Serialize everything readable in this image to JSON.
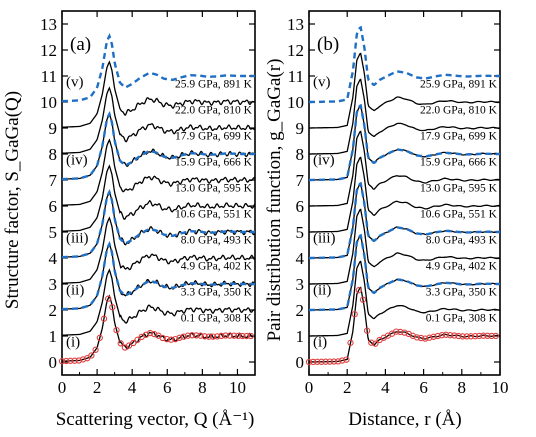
{
  "figure": {
    "panels": [
      {
        "label": "(a)",
        "xlabel": "Scattering vector, Q (Å⁻¹)",
        "ylabel": "Structure factor, S_GaGa(Q)"
      },
      {
        "label": "(b)",
        "xlabel": "Distance, r (Å)",
        "ylabel": "Pair distribution function, g_GaGa(r)"
      }
    ],
    "conditions": [
      "0.1 GPa, 308 K",
      "3.3 GPa, 350 K",
      "4.9 GPa, 402 K",
      "8.0 GPa, 493 K",
      "10.6 GPa, 551 K",
      "13.0 GPa, 595 K",
      "15.9 GPa, 666 K",
      "17.9 GPa, 699 K",
      "22.0 GPa, 810 K",
      "25.9 GPa, 891 K"
    ],
    "offsets": [
      0,
      1,
      2,
      3,
      4,
      5,
      6,
      7,
      8,
      9
    ],
    "reference_labels": [
      "(i)",
      "(ii)",
      "(iii)",
      "(iv)",
      "(v)"
    ],
    "reference_offsets": [
      0,
      2,
      4,
      7,
      10
    ],
    "colors": {
      "experiment": "#000000",
      "reference_dashed": "#1f6fc5",
      "reference_circles": "#e03c3c"
    }
  },
  "chart_data": [
    {
      "type": "line",
      "xlabel": "Scattering vector, Q (Å⁻¹)",
      "ylabel": "Structure factor, S_GaGa(Q)",
      "xlim": [
        0,
        11
      ],
      "ylim": [
        -0.5,
        13.5
      ],
      "xticks": [
        0,
        2,
        4,
        6,
        8,
        10
      ],
      "yticks": [
        0,
        1,
        2,
        3,
        4,
        5,
        6,
        7,
        8,
        9,
        10,
        11,
        12,
        13
      ],
      "offset_step": 1,
      "profile": {
        "x": [
          0.0,
          1.0,
          1.6,
          2.0,
          2.3,
          2.55,
          2.7,
          2.85,
          3.0,
          3.3,
          3.6,
          4.0,
          4.5,
          5.0,
          5.4,
          5.8,
          6.3,
          6.8,
          7.3,
          7.8,
          8.3,
          8.8,
          9.3,
          9.8,
          10.3,
          11.0
        ],
        "y": [
          0.03,
          0.06,
          0.18,
          0.55,
          1.3,
          2.3,
          2.55,
          2.2,
          1.5,
          0.75,
          0.55,
          0.7,
          0.95,
          1.12,
          1.05,
          0.9,
          0.85,
          0.95,
          1.03,
          1.02,
          0.97,
          0.98,
          1.02,
          1.01,
          1.0,
          1.0
        ]
      },
      "series": [
        {
          "label": "0.1 GPa, 308 K",
          "offset": 0
        },
        {
          "label": "3.3 GPa, 350 K",
          "offset": 1
        },
        {
          "label": "4.9 GPa, 402 K",
          "offset": 2
        },
        {
          "label": "8.0 GPa, 493 K",
          "offset": 3
        },
        {
          "label": "10.6 GPa, 551 K",
          "offset": 4
        },
        {
          "label": "13.0 GPa, 595 K",
          "offset": 5
        },
        {
          "label": "15.9 GPa, 666 K",
          "offset": 6
        },
        {
          "label": "17.9 GPa, 699 K",
          "offset": 7
        },
        {
          "label": "22.0 GPa, 810 K",
          "offset": 8
        },
        {
          "label": "25.9 GPa, 891 K",
          "offset": 9
        }
      ],
      "reference_series": [
        {
          "label": "(i)",
          "offset": 0,
          "style": "circles",
          "color": "#e03c3c"
        },
        {
          "label": "(ii)",
          "offset": 2,
          "style": "dashed",
          "color": "#1f6fc5"
        },
        {
          "label": "(iii)",
          "offset": 4,
          "style": "dashed",
          "color": "#1f6fc5"
        },
        {
          "label": "(iv)",
          "offset": 7,
          "style": "dashed",
          "color": "#1f6fc5"
        },
        {
          "label": "(v)",
          "offset": 10,
          "style": "dashed",
          "color": "#1f6fc5"
        }
      ]
    },
    {
      "type": "line",
      "xlabel": "Distance, r (Å)",
      "ylabel": "Pair distribution function, g_GaGa(r)",
      "xlim": [
        0,
        10
      ],
      "ylim": [
        -0.5,
        13.5
      ],
      "xticks": [
        0,
        2,
        4,
        6,
        8,
        10
      ],
      "yticks": [
        0,
        1,
        2,
        3,
        4,
        5,
        6,
        7,
        8,
        9,
        10,
        11,
        12,
        13
      ],
      "offset_step": 1,
      "profile": {
        "x": [
          0.0,
          1.5,
          2.0,
          2.3,
          2.5,
          2.7,
          2.9,
          3.1,
          3.4,
          3.7,
          4.1,
          4.6,
          5.1,
          5.6,
          6.1,
          6.6,
          7.1,
          7.6,
          8.1,
          8.6,
          9.1,
          10.0
        ],
        "y": [
          0.0,
          0.02,
          0.1,
          1.2,
          2.6,
          2.9,
          2.1,
          0.85,
          0.65,
          0.85,
          1.0,
          1.18,
          1.12,
          0.95,
          0.9,
          0.98,
          1.05,
          1.02,
          0.98,
          0.99,
          1.01,
          1.0
        ]
      },
      "series": [
        {
          "label": "0.1 GPa, 308 K",
          "offset": 0
        },
        {
          "label": "3.3 GPa, 350 K",
          "offset": 1
        },
        {
          "label": "4.9 GPa, 402 K",
          "offset": 2
        },
        {
          "label": "8.0 GPa, 493 K",
          "offset": 3
        },
        {
          "label": "10.6 GPa, 551 K",
          "offset": 4
        },
        {
          "label": "13.0 GPa, 595 K",
          "offset": 5
        },
        {
          "label": "15.9 GPa, 666 K",
          "offset": 6
        },
        {
          "label": "17.9 GPa, 699 K",
          "offset": 7
        },
        {
          "label": "22.0 GPa, 810 K",
          "offset": 8
        },
        {
          "label": "25.9 GPa, 891 K",
          "offset": 9
        }
      ],
      "reference_series": [
        {
          "label": "(i)",
          "offset": 0,
          "style": "circles",
          "color": "#e03c3c"
        },
        {
          "label": "(ii)",
          "offset": 2,
          "style": "dashed",
          "color": "#1f6fc5"
        },
        {
          "label": "(iii)",
          "offset": 4,
          "style": "dashed",
          "color": "#1f6fc5"
        },
        {
          "label": "(iv)",
          "offset": 7,
          "style": "dashed",
          "color": "#1f6fc5"
        },
        {
          "label": "(v)",
          "offset": 10,
          "style": "dashed",
          "color": "#1f6fc5"
        }
      ]
    }
  ]
}
